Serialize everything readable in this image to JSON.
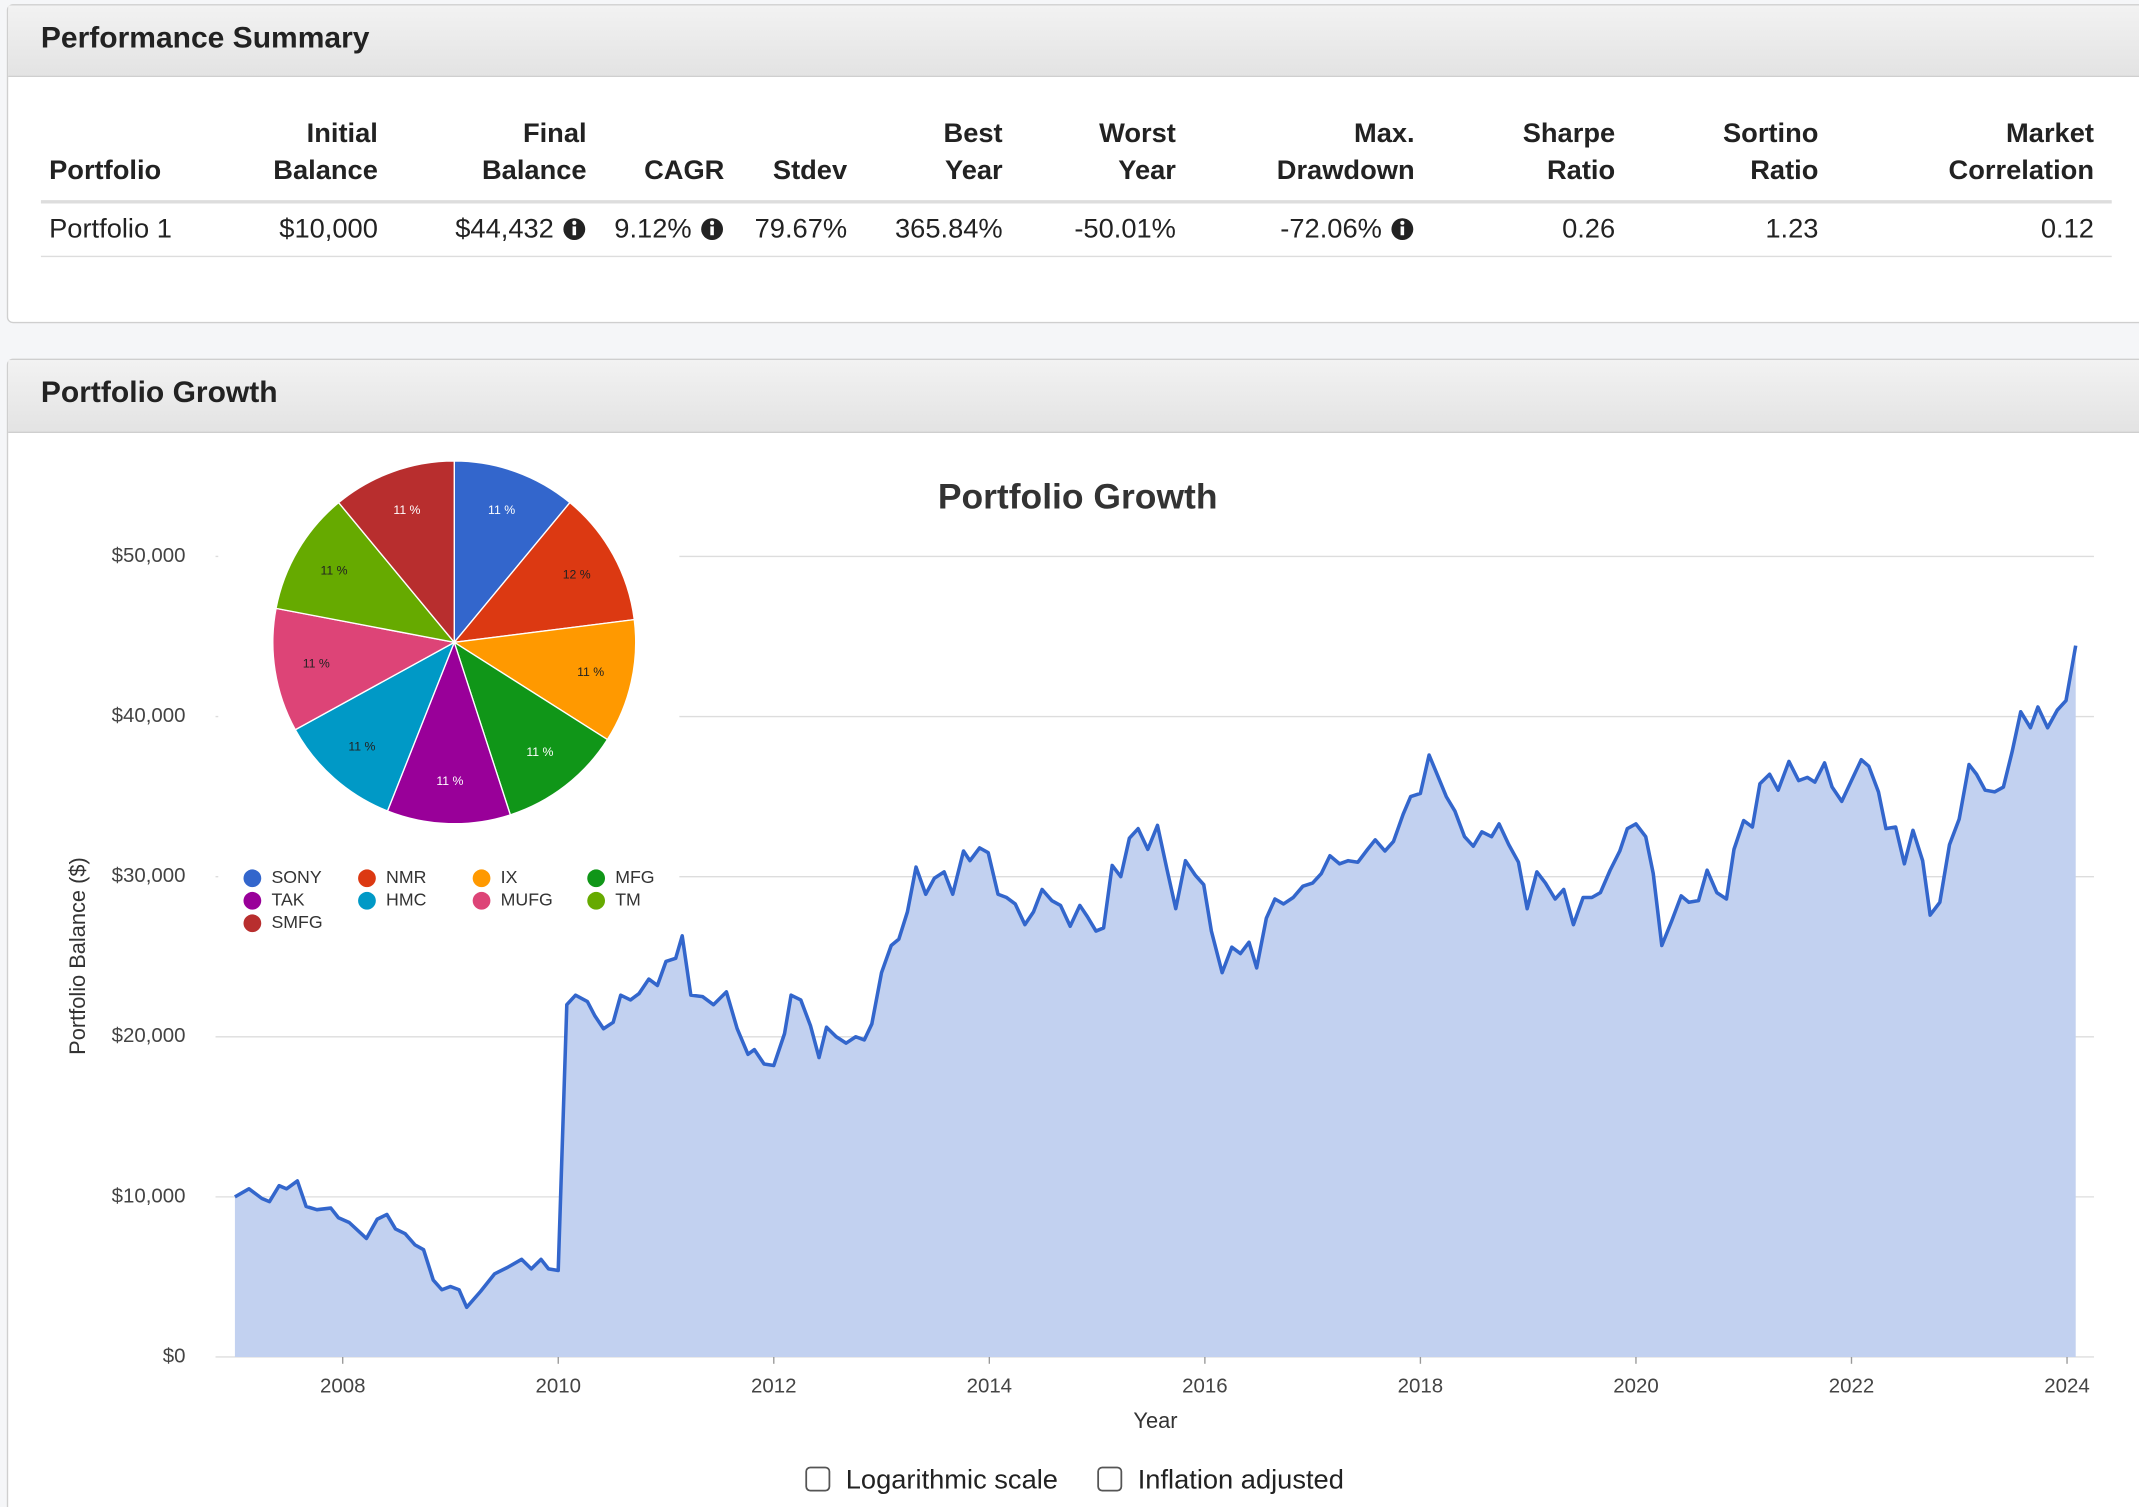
{
  "summary": {
    "title": "Performance Summary",
    "headers": [
      [
        "Portfolio"
      ],
      [
        "Initial",
        "Balance"
      ],
      [
        "Final",
        "Balance"
      ],
      [
        "CAGR"
      ],
      [
        "Stdev"
      ],
      [
        "Best",
        "Year"
      ],
      [
        "Worst",
        "Year"
      ],
      [
        "Max.",
        "Drawdown"
      ],
      [
        "Sharpe",
        "Ratio"
      ],
      [
        "Sortino",
        "Ratio"
      ],
      [
        "Market",
        "Correlation"
      ]
    ],
    "rows": [
      [
        "Portfolio 1",
        "$10,000",
        "$44,432",
        "9.12%",
        "79.67%",
        "365.84%",
        "-50.01%",
        "-72.06%",
        "0.26",
        "1.23",
        "0.12"
      ]
    ],
    "info_columns": [
      2,
      3,
      7
    ]
  },
  "growth_panel": {
    "title": "Portfolio Growth"
  },
  "controls": {
    "log_label": "Logarithmic scale",
    "inflation_label": "Inflation adjusted"
  },
  "chart_data": [
    {
      "type": "area",
      "title": "Portfolio Growth",
      "x_label": "Year",
      "y_label": "Portfolio Balance ($)",
      "color": "#3366cc",
      "fill": "#c2d1f0",
      "grid": true,
      "log_scale": false,
      "inflation_adjusted": false,
      "xlim": [
        2006.82,
        2024.25
      ],
      "xticks": [
        2008,
        2010,
        2012,
        2014,
        2016,
        2018,
        2020,
        2022,
        2024
      ],
      "ylim": [
        0,
        50000
      ],
      "yticks": [
        {
          "value": 0,
          "label": "$0"
        },
        {
          "value": 10000,
          "label": "$10,000"
        },
        {
          "value": 20000,
          "label": "$20,000"
        },
        {
          "value": 30000,
          "label": "$30,000"
        },
        {
          "value": 40000,
          "label": "$40,000"
        },
        {
          "value": 50000,
          "label": "$50,000"
        }
      ],
      "x": [
        2007.0,
        2007.13,
        2007.25,
        2007.32,
        2007.41,
        2007.48,
        2007.58,
        2007.66,
        2007.76,
        2007.89,
        2007.96,
        2008.06,
        2008.22,
        2008.32,
        2008.41,
        2008.49,
        2008.58,
        2008.67,
        2008.75,
        2008.84,
        2008.92,
        2009.0,
        2009.08,
        2009.15,
        2009.28,
        2009.41,
        2009.53,
        2009.66,
        2009.75,
        2009.84,
        2009.91,
        2010.0,
        2010.08,
        2010.16,
        2010.27,
        2010.34,
        2010.42,
        2010.51,
        2010.58,
        2010.67,
        2010.75,
        2010.84,
        2010.92,
        2011.0,
        2011.09,
        2011.15,
        2011.23,
        2011.34,
        2011.44,
        2011.56,
        2011.66,
        2011.76,
        2011.82,
        2011.91,
        2012.0,
        2012.1,
        2012.16,
        2012.25,
        2012.34,
        2012.42,
        2012.49,
        2012.58,
        2012.67,
        2012.76,
        2012.84,
        2012.91,
        2013.0,
        2013.09,
        2013.16,
        2013.24,
        2013.32,
        2013.41,
        2013.49,
        2013.58,
        2013.66,
        2013.76,
        2013.82,
        2013.91,
        2013.99,
        2014.08,
        2014.16,
        2014.24,
        2014.33,
        2014.41,
        2014.49,
        2014.58,
        2014.66,
        2014.75,
        2014.84,
        2014.91,
        2014.99,
        2015.06,
        2015.14,
        2015.22,
        2015.3,
        2015.38,
        2015.47,
        2015.56,
        2015.65,
        2015.73,
        2015.82,
        2015.91,
        2015.99,
        2016.06,
        2016.16,
        2016.25,
        2016.33,
        2016.41,
        2016.48,
        2016.57,
        2016.65,
        2016.73,
        2016.82,
        2016.91,
        2017.0,
        2017.08,
        2017.16,
        2017.25,
        2017.33,
        2017.42,
        2017.51,
        2017.58,
        2017.67,
        2017.75,
        2017.84,
        2017.91,
        2018.0,
        2018.08,
        2018.16,
        2018.24,
        2018.32,
        2018.41,
        2018.49,
        2018.57,
        2018.66,
        2018.73,
        2018.82,
        2018.91,
        2018.99,
        2019.08,
        2019.16,
        2019.25,
        2019.33,
        2019.42,
        2019.51,
        2019.59,
        2019.67,
        2019.76,
        2019.85,
        2019.92,
        2020.0,
        2020.09,
        2020.16,
        2020.24,
        2020.33,
        2020.42,
        2020.49,
        2020.58,
        2020.66,
        2020.75,
        2020.84,
        2020.91,
        2021.0,
        2021.08,
        2021.15,
        2021.24,
        2021.32,
        2021.42,
        2021.51,
        2021.59,
        2021.66,
        2021.75,
        2021.82,
        2021.91,
        2022.0,
        2022.09,
        2022.16,
        2022.25,
        2022.32,
        2022.41,
        2022.49,
        2022.57,
        2022.66,
        2022.73,
        2022.82,
        2022.91,
        2023.0,
        2023.09,
        2023.16,
        2023.24,
        2023.33,
        2023.41,
        2023.49,
        2023.57,
        2023.66,
        2023.73,
        2023.82,
        2023.91,
        2023.99,
        2024.08
      ],
      "values": [
        10000,
        10500,
        9900,
        9700,
        10700,
        10500,
        11000,
        9400,
        9200,
        9300,
        8700,
        8400,
        7400,
        8600,
        8900,
        8000,
        7700,
        7000,
        6700,
        4800,
        4200,
        4400,
        4200,
        3100,
        4100,
        5200,
        5600,
        6100,
        5500,
        6100,
        5500,
        5400,
        22000,
        22600,
        22200,
        21300,
        20500,
        20900,
        22600,
        22300,
        22700,
        23600,
        23200,
        24700,
        24900,
        26300,
        22600,
        22500,
        22000,
        22800,
        20500,
        18900,
        19200,
        18300,
        18200,
        20200,
        22600,
        22300,
        20700,
        18700,
        20600,
        20000,
        19600,
        20000,
        19800,
        20800,
        24000,
        25700,
        26100,
        27800,
        30600,
        28900,
        29900,
        30300,
        28900,
        31600,
        31000,
        31800,
        31500,
        28900,
        28700,
        28300,
        27000,
        27800,
        29200,
        28500,
        28200,
        26900,
        28200,
        27500,
        26600,
        26800,
        30700,
        30000,
        32400,
        33000,
        31700,
        33200,
        30400,
        28000,
        31000,
        30100,
        29500,
        26600,
        24000,
        25600,
        25200,
        25900,
        24300,
        27400,
        28600,
        28300,
        28700,
        29400,
        29600,
        30200,
        31300,
        30800,
        31000,
        30900,
        31700,
        32300,
        31600,
        32200,
        33900,
        35000,
        35200,
        37600,
        36300,
        35000,
        34100,
        32500,
        31900,
        32800,
        32500,
        33300,
        32000,
        30900,
        28000,
        30300,
        29600,
        28600,
        29200,
        27000,
        28700,
        28700,
        29000,
        30400,
        31600,
        33000,
        33300,
        32500,
        30200,
        25700,
        27200,
        28800,
        28400,
        28500,
        30400,
        29000,
        28600,
        31700,
        33500,
        33100,
        35800,
        36400,
        35400,
        37200,
        36000,
        36200,
        35900,
        37100,
        35600,
        34700,
        36000,
        37300,
        36900,
        35300,
        33000,
        33100,
        30800,
        32900,
        31000,
        27600,
        28400,
        32000,
        33600,
        37000,
        36400,
        35400,
        35300,
        35600,
        37800,
        40300,
        39300,
        40600,
        39300,
        40400,
        41000,
        44432
      ]
    },
    {
      "type": "pie",
      "categories": [
        "SONY",
        "NMR",
        "IX",
        "MFG",
        "TAK",
        "HMC",
        "MUFG",
        "TM",
        "SMFG"
      ],
      "values": [
        11,
        12,
        11,
        11,
        11,
        11,
        11,
        11,
        11
      ],
      "value_labels": [
        "11 %",
        "12 %",
        "11 %",
        "11 %",
        "11 %",
        "11 %",
        "11 %",
        "11 %",
        "11 %"
      ],
      "colors": [
        "#3366cc",
        "#dc3912",
        "#ff9900",
        "#109618",
        "#990099",
        "#0099c6",
        "#dd4477",
        "#66aa00",
        "#b82e2e"
      ]
    }
  ]
}
